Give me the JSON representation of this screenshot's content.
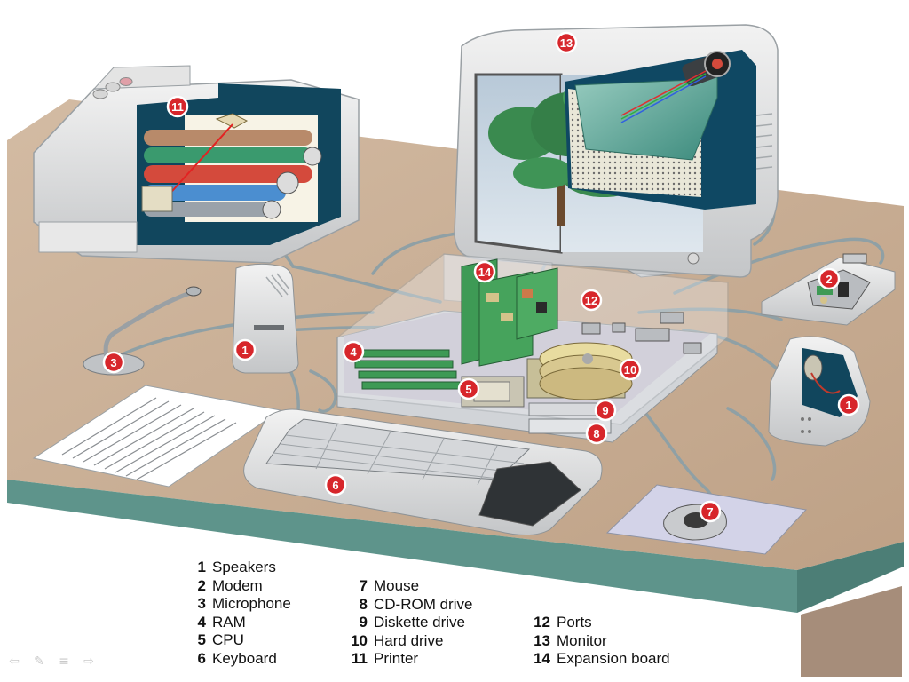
{
  "diagram": {
    "legend_columns": [
      [
        {
          "num": "1",
          "label": "Speakers"
        },
        {
          "num": "2",
          "label": "Modem"
        },
        {
          "num": "3",
          "label": "Microphone"
        },
        {
          "num": "4",
          "label": "RAM"
        },
        {
          "num": "5",
          "label": "CPU"
        },
        {
          "num": "6",
          "label": "Keyboard"
        }
      ],
      [
        {
          "num": "7",
          "label": "Mouse"
        },
        {
          "num": "8",
          "label": "CD-ROM drive"
        },
        {
          "num": "9",
          "label": "Diskette drive"
        },
        {
          "num": "10",
          "label": "Hard drive"
        },
        {
          "num": "11",
          "label": "Printer"
        }
      ],
      [
        {
          "num": "12",
          "label": "Ports"
        },
        {
          "num": "13",
          "label": "Monitor"
        },
        {
          "num": "14",
          "label": "Expansion board"
        }
      ]
    ],
    "callouts": [
      {
        "id": "speaker-left",
        "num": "1"
      },
      {
        "id": "speaker-right",
        "num": "1"
      },
      {
        "id": "modem",
        "num": "2"
      },
      {
        "id": "microphone",
        "num": "3"
      },
      {
        "id": "ram",
        "num": "4"
      },
      {
        "id": "cpu",
        "num": "5"
      },
      {
        "id": "keyboard",
        "num": "6"
      },
      {
        "id": "mouse",
        "num": "7"
      },
      {
        "id": "cdrom",
        "num": "8"
      },
      {
        "id": "diskette",
        "num": "9"
      },
      {
        "id": "harddrive",
        "num": "10"
      },
      {
        "id": "printer",
        "num": "11"
      },
      {
        "id": "ports",
        "num": "12"
      },
      {
        "id": "monitor",
        "num": "13"
      },
      {
        "id": "expansion",
        "num": "14"
      }
    ],
    "colors": {
      "badge": "#d7262b",
      "desk_top": "#c8ad93",
      "desk_edge": "#5e948b",
      "cable": "#8fa0a5",
      "case_blue": "#0f4863",
      "board_green": "#3e9a55",
      "screen_tree": "#3a8a4f"
    }
  },
  "slide_nav": {
    "icons": [
      "previous-arrow-icon",
      "pen-icon",
      "menu-icon",
      "next-arrow-icon"
    ]
  }
}
